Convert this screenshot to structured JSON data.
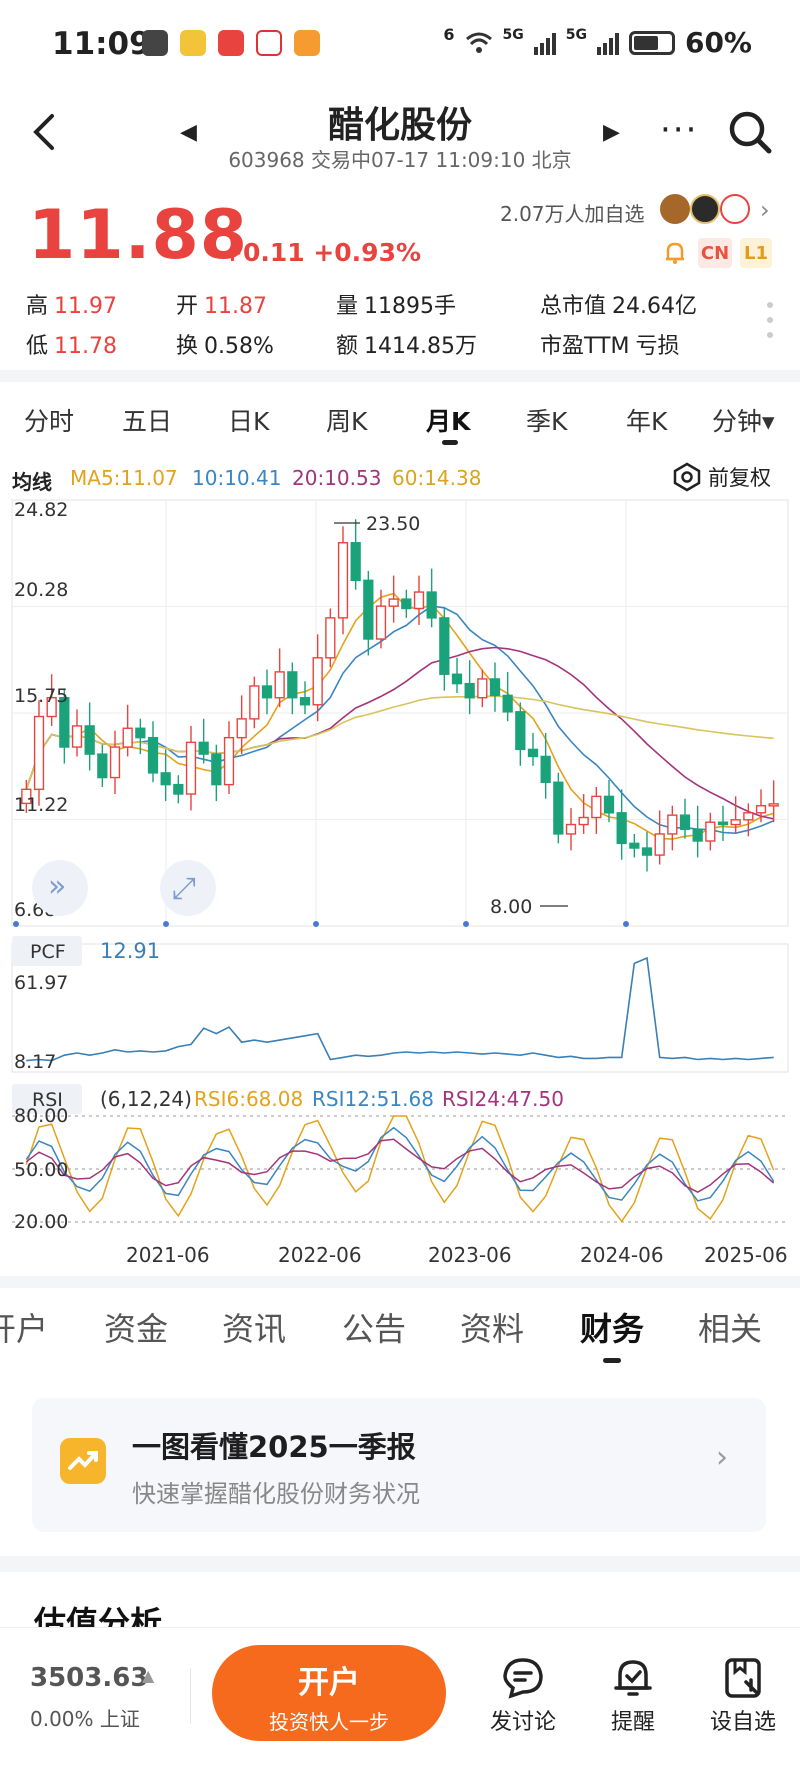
{
  "status_bar": {
    "time": "11:09",
    "battery": "60%",
    "signal1": "5G",
    "signal2": "5G",
    "wifi_sup": "6"
  },
  "header": {
    "title": "醋化股份",
    "subtitle": "603968 交易中07-17 11:09:10 北京"
  },
  "quote": {
    "price": "11.88",
    "change": "+0.11 +0.93%",
    "followers": "2.07万人加自选",
    "tags": {
      "cn": "CN",
      "l1": "L1"
    },
    "stats": [
      {
        "label": "高",
        "value": "11.97",
        "color": "red"
      },
      {
        "label": "开",
        "value": "11.87",
        "color": "red"
      },
      {
        "label": "量",
        "value": "11895手",
        "color": "plain"
      },
      {
        "label": "总市值",
        "value": "24.64亿",
        "color": "plain"
      },
      {
        "label": "低",
        "value": "11.78",
        "color": "red"
      },
      {
        "label": "换",
        "value": "0.58%",
        "color": "plain"
      },
      {
        "label": "额",
        "value": "1414.85万",
        "color": "plain"
      },
      {
        "label": "市盈TTM",
        "value": "亏损",
        "color": "plain"
      }
    ]
  },
  "period_tabs": [
    "分时",
    "五日",
    "日K",
    "周K",
    "月K",
    "季K",
    "年K",
    "分钟▾"
  ],
  "period_active": "月K",
  "ma_legend": {
    "label": "均线",
    "ma5": "MA5:11.07",
    "ma10": "10:10.41",
    "ma20": "20:10.53",
    "ma60": "60:14.38",
    "fuquan": "前复权"
  },
  "colors": {
    "up": "#e8433f",
    "down": "#1aa37a",
    "ma5": "#e4a21b",
    "ma10": "#3a86c2",
    "ma20": "#a3347c",
    "ma60": "#d8c45a",
    "pcf": "#3a7fb5"
  },
  "chart_data": [
    {
      "type": "candlestick",
      "title": "",
      "y_ticks": [
        "24.82",
        "20.28",
        "15.75",
        "11.22",
        "6.68"
      ],
      "ylim": [
        6.68,
        24.82
      ],
      "annotations": {
        "max": "23.50",
        "min": "8.00"
      },
      "x_ticks": [
        "2021-06",
        "2022-06",
        "2023-06",
        "2024-06",
        "2025-06"
      ],
      "series": [
        {
          "name": "MA5",
          "value": "11.07"
        },
        {
          "name": "10",
          "value": "10.41"
        },
        {
          "name": "20",
          "value": "10.53"
        },
        {
          "name": "60",
          "value": "14.38"
        }
      ]
    },
    {
      "type": "line",
      "label": "PCF",
      "value": "12.91",
      "y_ticks": [
        "61.97",
        "8.17"
      ]
    },
    {
      "type": "line",
      "label": "RSI",
      "params": "(6,12,24)",
      "rsi6": "RSI6:68.08",
      "rsi12": "RSI12:51.68",
      "rsi24": "RSI24:47.50",
      "y_ticks": [
        "80.00",
        "50.00",
        "20.00"
      ]
    }
  ],
  "fin_tabs": [
    "开户",
    "资金",
    "资讯",
    "公告",
    "资料",
    "财务",
    "相关"
  ],
  "fin_active": "财务",
  "report_card": {
    "title": "一图看懂2025一季报",
    "subtitle": "快速掌握醋化股份财务状况"
  },
  "valuation_title": "估值分析",
  "bottom_bar": {
    "index_value": "3503.63",
    "index_sub": "0.00% 上证",
    "open_button": "开户",
    "open_button_sub": "投资快人一步",
    "discuss": "发讨论",
    "remind": "提醒",
    "watchlist": "设自选"
  }
}
